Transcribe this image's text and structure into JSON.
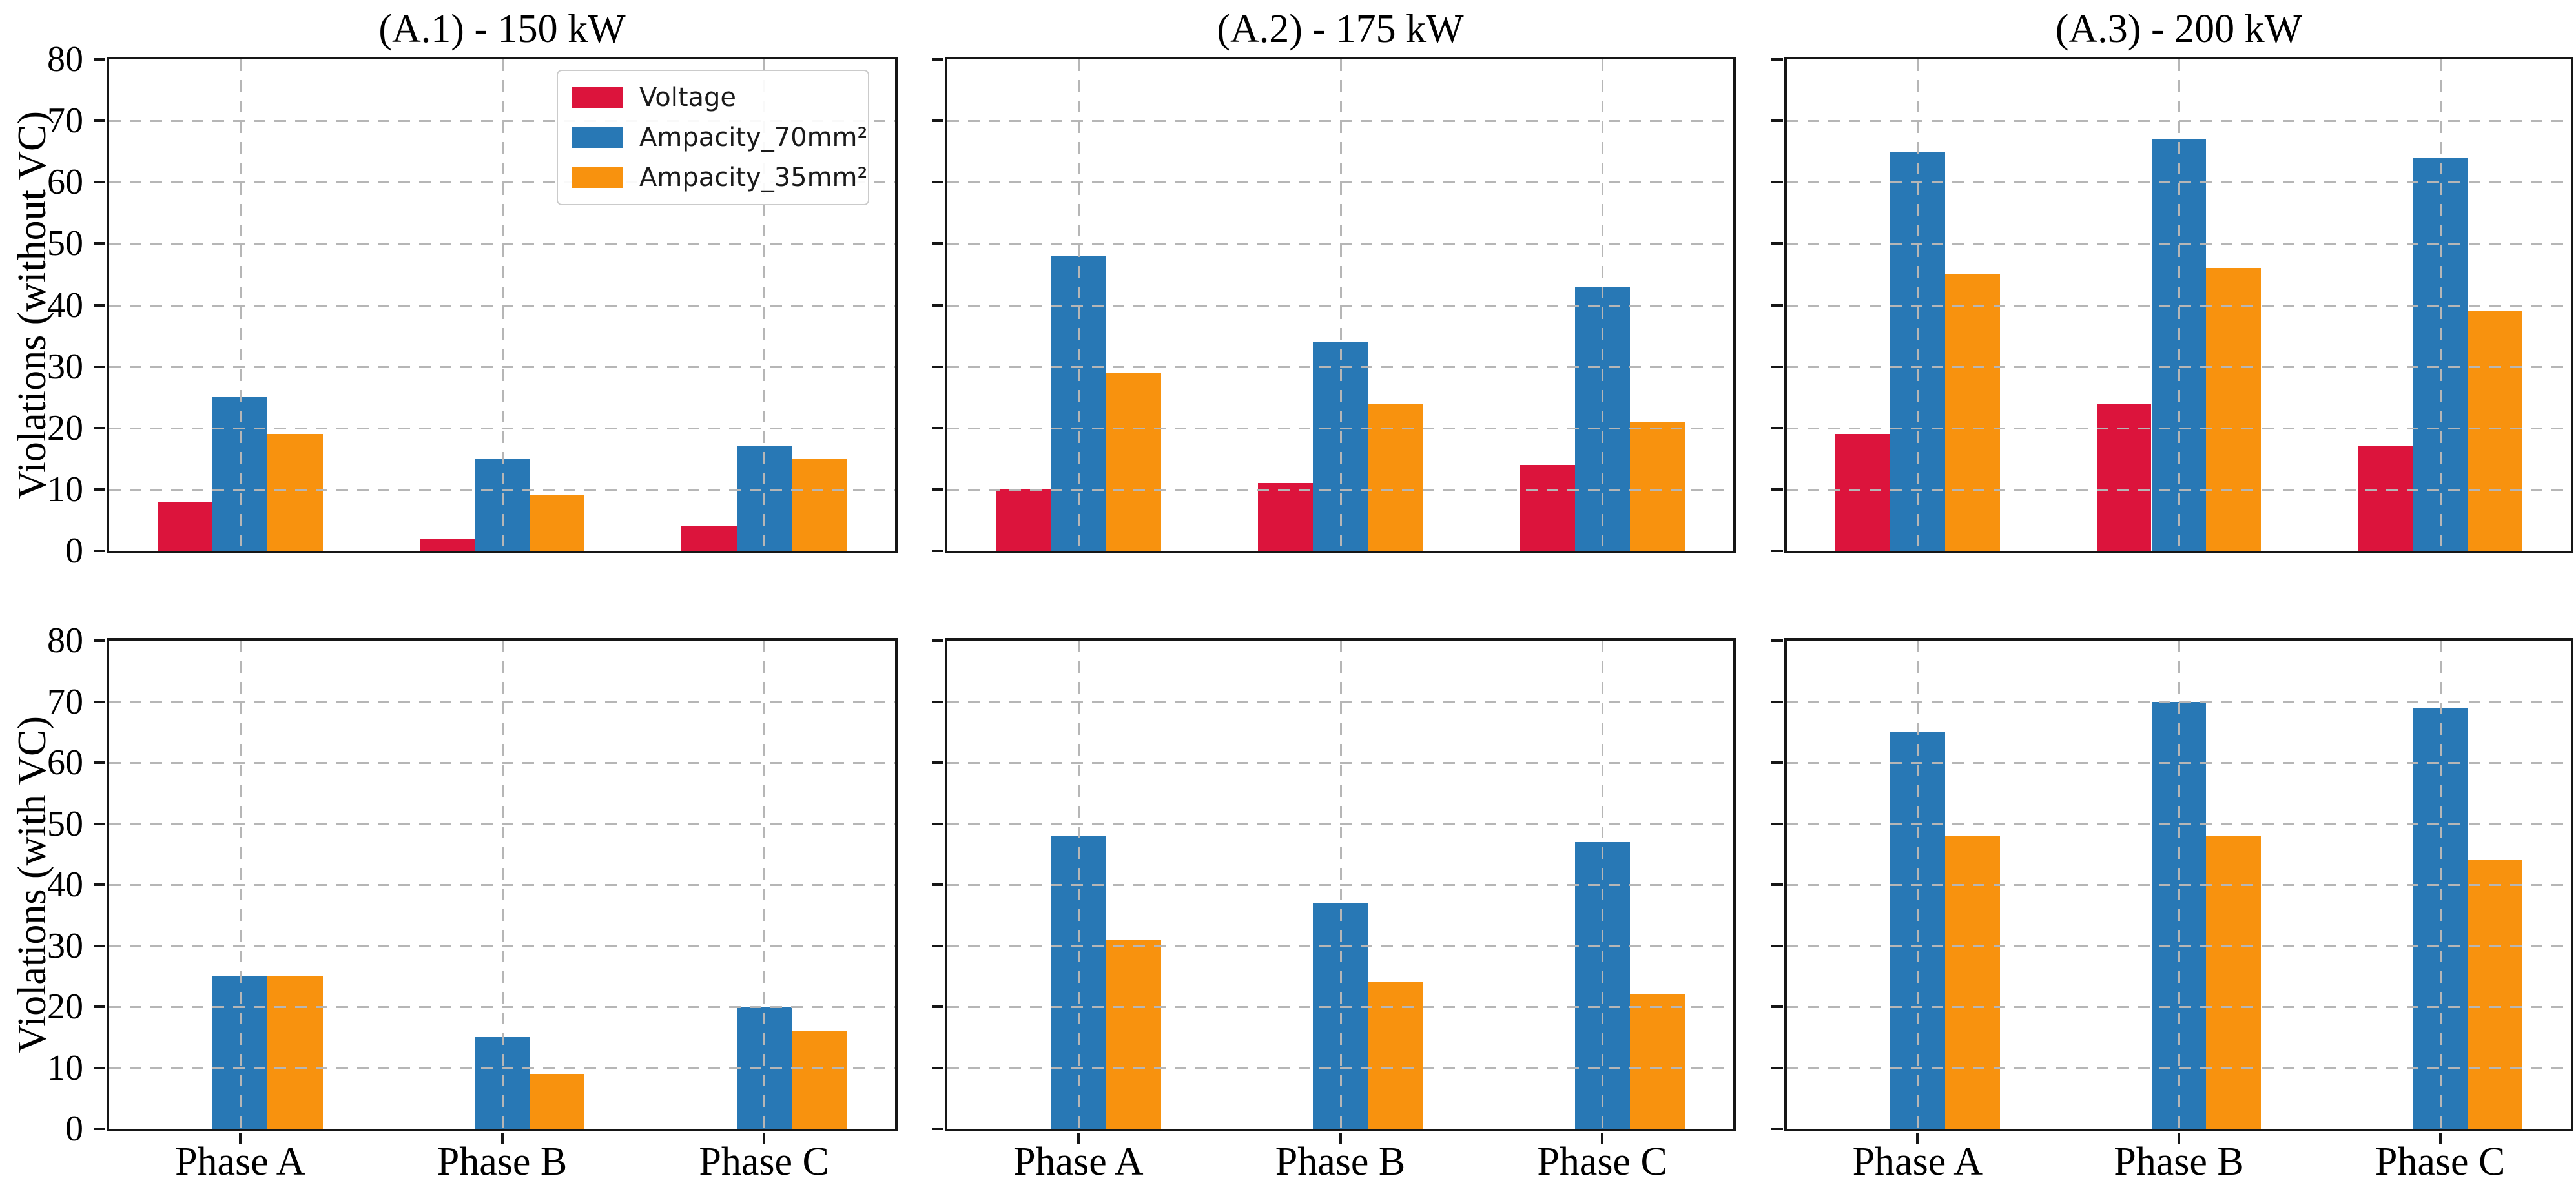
{
  "figure": {
    "background": "#ffffff",
    "rows": [
      {
        "ylabel": "Violations (without VC)"
      },
      {
        "ylabel": "Violations (with VC)"
      }
    ],
    "axis": {
      "ymin": 0,
      "ymax": 80,
      "ytick_step": 10
    }
  },
  "colors": {
    "voltage": "#dc143c",
    "ampacity_70mm2": "#2878b5",
    "ampacity_35mm2": "#f8920e",
    "grid": "#b6b6b6",
    "spine": "#161616"
  },
  "chart_data": [
    {
      "type": "bar",
      "row": 0,
      "col": 0,
      "title": "(A.1) - 150 kW",
      "ylabel": "Violations (without VC)",
      "categories": [
        "Phase A",
        "Phase B",
        "Phase C"
      ],
      "series": [
        {
          "name": "Voltage",
          "color": "#dc143c",
          "values": [
            8,
            2,
            4
          ]
        },
        {
          "name": "Ampacity_70mm²",
          "color": "#2878b5",
          "values": [
            25,
            15,
            17
          ]
        },
        {
          "name": "Ampacity_35mm²",
          "color": "#f8920e",
          "values": [
            19,
            9,
            15
          ]
        }
      ],
      "ylim": [
        0,
        80
      ],
      "yticks": [
        0,
        10,
        20,
        30,
        40,
        50,
        60,
        70,
        80
      ],
      "grid": true,
      "legend": true,
      "show_xticklabels": false,
      "show_yticklabels": true
    },
    {
      "type": "bar",
      "row": 0,
      "col": 1,
      "title": "(A.2) - 175 kW",
      "ylabel": "Violations (without VC)",
      "categories": [
        "Phase A",
        "Phase B",
        "Phase C"
      ],
      "series": [
        {
          "name": "Voltage",
          "color": "#dc143c",
          "values": [
            10,
            11,
            14
          ]
        },
        {
          "name": "Ampacity_70mm²",
          "color": "#2878b5",
          "values": [
            48,
            34,
            43
          ]
        },
        {
          "name": "Ampacity_35mm²",
          "color": "#f8920e",
          "values": [
            29,
            24,
            21
          ]
        }
      ],
      "ylim": [
        0,
        80
      ],
      "yticks": [
        0,
        10,
        20,
        30,
        40,
        50,
        60,
        70,
        80
      ],
      "grid": true,
      "legend": false,
      "show_xticklabels": false,
      "show_yticklabels": false
    },
    {
      "type": "bar",
      "row": 0,
      "col": 2,
      "title": "(A.3) - 200 kW",
      "ylabel": "Violations (without VC)",
      "categories": [
        "Phase A",
        "Phase B",
        "Phase C"
      ],
      "series": [
        {
          "name": "Voltage",
          "color": "#dc143c",
          "values": [
            19,
            24,
            17
          ]
        },
        {
          "name": "Ampacity_70mm²",
          "color": "#2878b5",
          "values": [
            65,
            67,
            64
          ]
        },
        {
          "name": "Ampacity_35mm²",
          "color": "#f8920e",
          "values": [
            45,
            46,
            39
          ]
        }
      ],
      "ylim": [
        0,
        80
      ],
      "yticks": [
        0,
        10,
        20,
        30,
        40,
        50,
        60,
        70,
        80
      ],
      "grid": true,
      "legend": false,
      "show_xticklabels": false,
      "show_yticklabels": false
    },
    {
      "type": "bar",
      "row": 1,
      "col": 0,
      "title": null,
      "ylabel": "Violations (with VC)",
      "categories": [
        "Phase A",
        "Phase B",
        "Phase C"
      ],
      "series": [
        {
          "name": "Voltage",
          "color": "#dc143c",
          "values": [
            0,
            0,
            0
          ]
        },
        {
          "name": "Ampacity_70mm²",
          "color": "#2878b5",
          "values": [
            25,
            15,
            20
          ]
        },
        {
          "name": "Ampacity_35mm²",
          "color": "#f8920e",
          "values": [
            25,
            9,
            16
          ]
        }
      ],
      "ylim": [
        0,
        80
      ],
      "yticks": [
        0,
        10,
        20,
        30,
        40,
        50,
        60,
        70,
        80
      ],
      "grid": true,
      "legend": false,
      "show_xticklabels": true,
      "show_yticklabels": true
    },
    {
      "type": "bar",
      "row": 1,
      "col": 1,
      "title": null,
      "ylabel": "Violations (with VC)",
      "categories": [
        "Phase A",
        "Phase B",
        "Phase C"
      ],
      "series": [
        {
          "name": "Voltage",
          "color": "#dc143c",
          "values": [
            0,
            0,
            0
          ]
        },
        {
          "name": "Ampacity_70mm²",
          "color": "#2878b5",
          "values": [
            48,
            37,
            47
          ]
        },
        {
          "name": "Ampacity_35mm²",
          "color": "#f8920e",
          "values": [
            31,
            24,
            22
          ]
        }
      ],
      "ylim": [
        0,
        80
      ],
      "yticks": [
        0,
        10,
        20,
        30,
        40,
        50,
        60,
        70,
        80
      ],
      "grid": true,
      "legend": false,
      "show_xticklabels": true,
      "show_yticklabels": false
    },
    {
      "type": "bar",
      "row": 1,
      "col": 2,
      "title": null,
      "ylabel": "Violations (with VC)",
      "categories": [
        "Phase A",
        "Phase B",
        "Phase C"
      ],
      "series": [
        {
          "name": "Voltage",
          "color": "#dc143c",
          "values": [
            0,
            0,
            0
          ]
        },
        {
          "name": "Ampacity_70mm²",
          "color": "#2878b5",
          "values": [
            65,
            70,
            69
          ]
        },
        {
          "name": "Ampacity_35mm²",
          "color": "#f8920e",
          "values": [
            48,
            48,
            44
          ]
        }
      ],
      "ylim": [
        0,
        80
      ],
      "yticks": [
        0,
        10,
        20,
        30,
        40,
        50,
        60,
        70,
        80
      ],
      "grid": true,
      "legend": false,
      "show_xticklabels": true,
      "show_yticklabels": false
    }
  ]
}
